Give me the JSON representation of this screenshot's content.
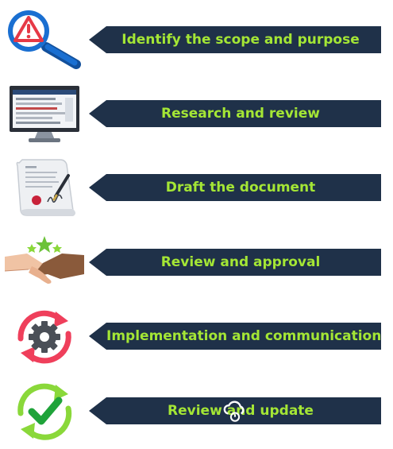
{
  "steps": [
    {
      "label": "Identify the scope and purpose",
      "icon": "warning-magnifier-icon"
    },
    {
      "label": "Research and review",
      "icon": "monitor-icon"
    },
    {
      "label": "Draft the document",
      "icon": "signed-document-icon"
    },
    {
      "label": "Review and approval",
      "icon": "handshake-icon"
    },
    {
      "label": "Implementation and communication",
      "icon": "gear-cycle-icon"
    },
    {
      "label": "Review and update",
      "icon": "checkmark-cycle-icon"
    }
  ],
  "colors": {
    "banner": "#1f3149",
    "label": "#a4e635",
    "magnifier_blue": "#1a6fd1",
    "warning_red": "#e63946",
    "cycle_red": "#ef3f5b",
    "cycle_green": "#8ad83a",
    "check_green": "#1fa33a"
  }
}
